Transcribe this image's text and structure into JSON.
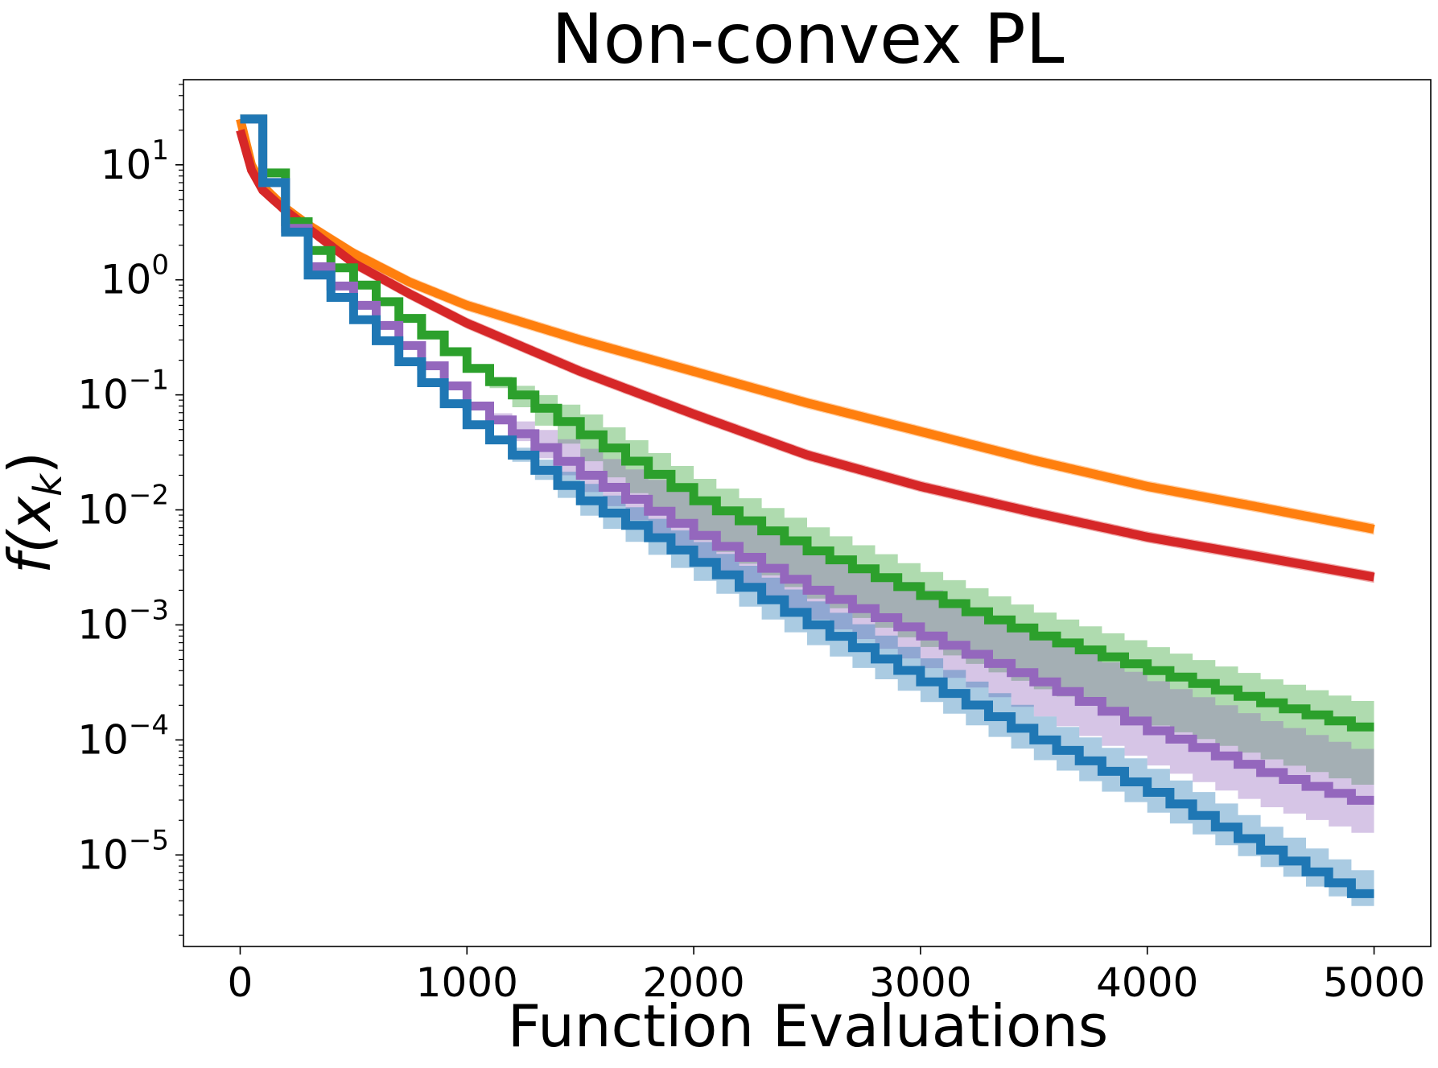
{
  "chart_data": {
    "type": "line",
    "title": "Non-convex PL",
    "xlabel": "Function Evaluations",
    "ylabel": "f(x",
    "ylabel_sub": "k",
    "ylabel_close": ")",
    "yscale": "log",
    "xlim": [
      -250,
      5250
    ],
    "ylim": [
      1.6e-06,
      55
    ],
    "x_ticks": [
      0,
      1000,
      2000,
      3000,
      4000,
      5000
    ],
    "x_tick_labels": [
      "0",
      "1000",
      "2000",
      "3000",
      "4000",
      "5000"
    ],
    "y_ticks": [
      1e-05,
      0.0001,
      0.001,
      0.01,
      0.1,
      1,
      10
    ],
    "y_tick_labels": [
      {
        "base": "10",
        "exp": "−5"
      },
      {
        "base": "10",
        "exp": "−4"
      },
      {
        "base": "10",
        "exp": "−3"
      },
      {
        "base": "10",
        "exp": "−2"
      },
      {
        "base": "10",
        "exp": "−1"
      },
      {
        "base": "10",
        "exp": "0"
      },
      {
        "base": "10",
        "exp": "1"
      }
    ],
    "grid": false,
    "legend": "none",
    "series": [
      {
        "color": "#ff7f0e",
        "style": "smooth",
        "x": [
          0,
          50,
          100,
          200,
          300,
          500,
          750,
          1000,
          1500,
          2000,
          2500,
          3000,
          3500,
          4000,
          4500,
          5000
        ],
        "y": [
          25,
          10,
          6.5,
          4.2,
          3.0,
          1.7,
          0.95,
          0.6,
          0.3,
          0.16,
          0.085,
          0.048,
          0.027,
          0.016,
          0.0105,
          0.0068
        ],
        "band": 0.12
      },
      {
        "color": "#d62728",
        "style": "smooth",
        "x": [
          0,
          50,
          100,
          200,
          300,
          500,
          750,
          1000,
          1500,
          2000,
          2500,
          3000,
          3500,
          4000,
          4500,
          5000
        ],
        "y": [
          20,
          9,
          6.0,
          4.0,
          2.8,
          1.4,
          0.75,
          0.42,
          0.16,
          0.068,
          0.03,
          0.016,
          0.0095,
          0.0058,
          0.0039,
          0.0026
        ],
        "band": 0.12
      },
      {
        "color": "#2ca02c",
        "style": "step",
        "step": 100,
        "x": [
          0,
          100,
          200,
          300,
          500,
          1000,
          1500,
          2000,
          2500,
          3000,
          3500,
          4000,
          4500,
          5000
        ],
        "y": [
          25,
          8.5,
          3.2,
          1.8,
          0.9,
          0.17,
          0.045,
          0.012,
          0.0044,
          0.0018,
          0.0008,
          0.0004,
          0.00021,
          0.000115
        ],
        "band_lo": [
          1,
          1,
          1,
          1,
          1,
          1,
          1.7,
          2.2,
          2.6,
          2.8,
          2.9,
          3.0,
          3.1,
          3.2
        ],
        "band_hi": [
          1,
          1,
          1,
          1,
          1,
          1,
          1.5,
          1.55,
          1.6,
          1.6,
          1.6,
          1.6,
          1.6,
          1.7
        ]
      },
      {
        "color": "#9467bd",
        "style": "step",
        "step": 100,
        "x": [
          0,
          100,
          200,
          300,
          500,
          1000,
          1500,
          2000,
          2500,
          3000,
          3500,
          4000,
          4500,
          5000
        ],
        "y": [
          25,
          7.0,
          2.8,
          1.3,
          0.6,
          0.08,
          0.02,
          0.006,
          0.002,
          0.0008,
          0.00032,
          0.00012,
          5.2e-05,
          2.6e-05
        ],
        "band_lo": [
          1,
          1,
          1,
          1,
          1,
          1,
          1.4,
          1.7,
          1.8,
          1.9,
          2.0,
          2.0,
          2.0,
          1.9
        ],
        "band_hi": [
          1,
          1,
          1,
          1,
          1,
          1,
          1.7,
          2.0,
          2.3,
          2.5,
          2.6,
          2.7,
          2.8,
          2.8
        ]
      },
      {
        "color": "#1f77b4",
        "style": "step",
        "step": 100,
        "x": [
          0,
          100,
          200,
          300,
          500,
          1000,
          1500,
          2000,
          2500,
          3000,
          3500,
          4000,
          4500,
          5000
        ],
        "y": [
          25,
          7.0,
          2.6,
          1.1,
          0.45,
          0.055,
          0.012,
          0.0035,
          0.001,
          0.00032,
          0.0001,
          3.5e-05,
          1.1e-05,
          3.7e-06
        ],
        "band_lo": [
          1,
          1,
          1,
          1,
          1,
          1,
          1.35,
          1.45,
          1.5,
          1.5,
          1.5,
          1.5,
          1.4,
          1.25
        ],
        "band_hi": [
          1,
          1,
          1,
          1,
          1,
          1,
          1.4,
          1.5,
          1.6,
          1.6,
          1.6,
          1.6,
          1.6,
          1.6
        ]
      }
    ]
  }
}
